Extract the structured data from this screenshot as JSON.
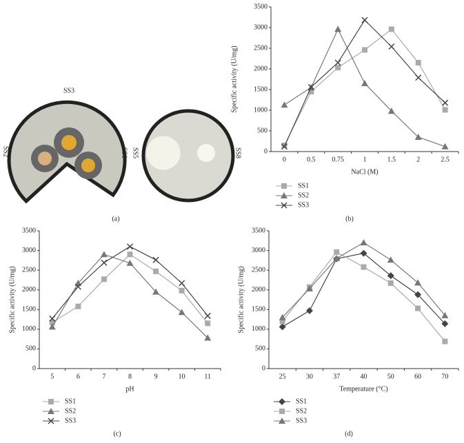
{
  "panel_a": {
    "labels": [
      "SS3",
      "SS2",
      "SS1",
      "SS5",
      "SS8"
    ],
    "caption": "(a)"
  },
  "chart_data": [
    {
      "type": "line",
      "caption": "(b)",
      "x_label": "NaCl (M)",
      "y_label": "Specific activity (U/mg)",
      "categories": [
        "0",
        "0.5",
        "0.75",
        "1",
        "1.5",
        "2",
        "2.5"
      ],
      "ylim": [
        0,
        3500
      ],
      "yticks": [
        0,
        500,
        1000,
        1500,
        2000,
        2500,
        3000,
        3500
      ],
      "legend": "bottom-left",
      "series": [
        {
          "name": "SS1",
          "color": "#aaaaaa",
          "marker": "square",
          "values": [
            150,
            1450,
            2030,
            2460,
            2960,
            2150,
            1010
          ]
        },
        {
          "name": "SS2",
          "color": "#777777",
          "marker": "triangle",
          "values": [
            1130,
            1550,
            2960,
            1650,
            980,
            350,
            120
          ]
        },
        {
          "name": "SS3",
          "color": "#444444",
          "marker": "x",
          "values": [
            120,
            1560,
            2150,
            3180,
            2540,
            1790,
            1180
          ]
        }
      ]
    },
    {
      "type": "line",
      "caption": "(c)",
      "x_label": "pH",
      "y_label": "Specific activity (U/mg)",
      "categories": [
        "5",
        "6",
        "7",
        "8",
        "9",
        "10",
        "11"
      ],
      "ylim": [
        0,
        3500
      ],
      "yticks": [
        0,
        500,
        1000,
        1500,
        2000,
        2500,
        3000,
        3500
      ],
      "legend": "bottom-left",
      "series": [
        {
          "name": "SS1",
          "color": "#aaaaaa",
          "marker": "square",
          "values": [
            1170,
            1580,
            2270,
            2900,
            2470,
            1980,
            1150
          ]
        },
        {
          "name": "SS2",
          "color": "#777777",
          "marker": "triangle",
          "values": [
            1060,
            2170,
            2900,
            2680,
            1950,
            1430,
            780
          ]
        },
        {
          "name": "SS3",
          "color": "#444444",
          "marker": "x",
          "values": [
            1270,
            2080,
            2690,
            3100,
            2760,
            2170,
            1340
          ]
        }
      ]
    },
    {
      "type": "line",
      "caption": "(d)",
      "x_label": "Temperature (°C)",
      "y_label": "Specific activity (U/mg)",
      "categories": [
        "25",
        "30",
        "37",
        "40",
        "50",
        "60",
        "70"
      ],
      "ylim": [
        0,
        3500
      ],
      "yticks": [
        0,
        500,
        1000,
        1500,
        2000,
        2500,
        3000,
        3500
      ],
      "legend": "bottom-left",
      "series": [
        {
          "name": "SS1",
          "color": "#444444",
          "marker": "diamond",
          "values": [
            1060,
            1470,
            2790,
            2930,
            2360,
            1880,
            1140
          ]
        },
        {
          "name": "SS2",
          "color": "#aaaaaa",
          "marker": "square",
          "values": [
            1200,
            2070,
            2960,
            2580,
            2170,
            1530,
            690
          ]
        },
        {
          "name": "SS3",
          "color": "#777777",
          "marker": "triangle",
          "values": [
            1300,
            2030,
            2800,
            3200,
            2760,
            2180,
            1350
          ]
        }
      ]
    }
  ]
}
